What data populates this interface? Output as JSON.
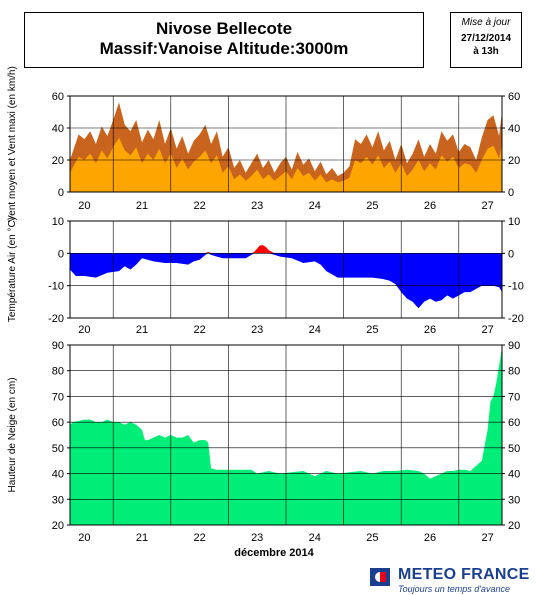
{
  "header": {
    "title_line1": "Nivose Bellecote",
    "title_line2": "Massif:Vanoise Altitude:3000m",
    "update_label": "Mise à jour",
    "update_date": "27/12/2014",
    "update_time": "à 13h"
  },
  "logo": {
    "name": "METEO FRANCE",
    "tagline": "Toujours un temps d'avance"
  },
  "colors": {
    "wind_max": "#c8641e",
    "wind_mean": "#ffa500",
    "temp_positive": "#ff0000",
    "temp_negative": "#0000ff",
    "snow": "#00ee77"
  },
  "chart_data": [
    {
      "type": "area",
      "ylabel": "Vent moyen et Vent maxi (en km/h)",
      "ylim": [
        0,
        60
      ],
      "yticks": [
        0,
        20,
        40,
        60
      ],
      "xlim": [
        19.75,
        27.25
      ],
      "xticks": [
        "20",
        "21",
        "22",
        "23",
        "24",
        "25",
        "26",
        "27"
      ],
      "grid": true,
      "series": [
        {
          "x": [
            19.75,
            19.9,
            20.0,
            20.1,
            20.2,
            20.3,
            20.4,
            20.5,
            20.6,
            20.7,
            20.8,
            20.9,
            21.0,
            21.1,
            21.2,
            21.3,
            21.4,
            21.5,
            21.6,
            21.7,
            21.8,
            21.9,
            22.0,
            22.1,
            22.2,
            22.3,
            22.4,
            22.5,
            22.6,
            22.7,
            22.8,
            22.9,
            23.0,
            23.1,
            23.2,
            23.3,
            23.4,
            23.5,
            23.6,
            23.7,
            23.8,
            23.9,
            24.0,
            24.1,
            24.2,
            24.3,
            24.4,
            24.5,
            24.6,
            24.7,
            24.8,
            24.9,
            25.0,
            25.1,
            25.2,
            25.3,
            25.4,
            25.5,
            25.6,
            25.7,
            25.8,
            25.9,
            26.0,
            26.1,
            26.2,
            26.3,
            26.4,
            26.5,
            26.6,
            26.7,
            26.8,
            26.9,
            27.0,
            27.1,
            27.2,
            27.25
          ],
          "values": [
            20,
            36,
            33,
            38,
            30,
            41,
            35,
            45,
            56,
            42,
            38,
            45,
            31,
            39,
            33,
            45,
            30,
            40,
            27,
            35,
            24,
            32,
            36,
            42,
            30,
            38,
            22,
            28,
            15,
            20,
            12,
            18,
            24,
            15,
            20,
            12,
            18,
            22,
            14,
            25,
            17,
            21,
            13,
            19,
            11,
            15,
            10,
            12,
            16,
            33,
            30,
            36,
            28,
            38,
            26,
            32,
            20,
            30,
            18,
            24,
            33,
            22,
            30,
            24,
            38,
            32,
            36,
            25,
            30,
            28,
            20,
            34,
            45,
            48,
            35,
            50
          ]
        },
        {
          "x": [
            19.75,
            19.9,
            20.0,
            20.1,
            20.2,
            20.3,
            20.4,
            20.5,
            20.6,
            20.7,
            20.8,
            20.9,
            21.0,
            21.1,
            21.2,
            21.3,
            21.4,
            21.5,
            21.6,
            21.7,
            21.8,
            21.9,
            22.0,
            22.1,
            22.2,
            22.3,
            22.4,
            22.5,
            22.6,
            22.7,
            22.8,
            22.9,
            23.0,
            23.1,
            23.2,
            23.3,
            23.4,
            23.5,
            23.6,
            23.7,
            23.8,
            23.9,
            24.0,
            24.1,
            24.2,
            24.3,
            24.4,
            24.5,
            24.6,
            24.7,
            24.8,
            24.9,
            25.0,
            25.1,
            25.2,
            25.3,
            25.4,
            25.5,
            25.6,
            25.7,
            25.8,
            25.9,
            26.0,
            26.1,
            26.2,
            26.3,
            26.4,
            26.5,
            26.6,
            26.7,
            26.8,
            26.9,
            27.0,
            27.1,
            27.2,
            27.25
          ],
          "values": [
            12,
            22,
            20,
            24,
            18,
            26,
            21,
            28,
            34,
            26,
            23,
            28,
            18,
            24,
            20,
            27,
            18,
            24,
            15,
            21,
            14,
            19,
            22,
            26,
            18,
            23,
            12,
            16,
            8,
            11,
            7,
            10,
            14,
            8,
            11,
            7,
            10,
            13,
            8,
            15,
            10,
            12,
            7,
            11,
            6,
            8,
            6,
            7,
            9,
            20,
            18,
            22,
            17,
            23,
            15,
            19,
            12,
            18,
            10,
            14,
            20,
            13,
            18,
            14,
            23,
            19,
            22,
            15,
            18,
            17,
            12,
            20,
            27,
            29,
            21,
            30
          ]
        }
      ]
    },
    {
      "type": "area",
      "ylabel": "Température Air (en °C)",
      "ylim": [
        -20,
        10
      ],
      "yticks": [
        -20,
        -10,
        0,
        10
      ],
      "xlim": [
        19.75,
        27.25
      ],
      "xticks": [
        "20",
        "21",
        "22",
        "23",
        "24",
        "25",
        "26",
        "27"
      ],
      "grid": true,
      "x": [
        19.75,
        19.85,
        20.0,
        20.2,
        20.4,
        20.6,
        20.7,
        20.8,
        20.9,
        21.0,
        21.2,
        21.4,
        21.6,
        21.8,
        21.9,
        22.0,
        22.1,
        22.15,
        22.2,
        22.3,
        22.4,
        22.6,
        22.75,
        22.8,
        22.9,
        22.95,
        23.0,
        23.05,
        23.1,
        23.15,
        23.2,
        23.3,
        23.4,
        23.6,
        23.8,
        24.0,
        24.1,
        24.2,
        24.4,
        24.6,
        24.8,
        25.0,
        25.2,
        25.3,
        25.4,
        25.5,
        25.6,
        25.7,
        25.75,
        25.8,
        25.9,
        26.0,
        26.1,
        26.2,
        26.3,
        26.4,
        26.5,
        26.6,
        26.7,
        26.8,
        26.9,
        27.0,
        27.1,
        27.2,
        27.25
      ],
      "values": [
        -5,
        -7,
        -7,
        -7.5,
        -6,
        -5.5,
        -4,
        -5,
        -3.5,
        -1.5,
        -2.5,
        -3,
        -3,
        -3.5,
        -2.5,
        -2,
        -0.5,
        0.5,
        -0.5,
        -1,
        -1.5,
        -1.5,
        -1.5,
        -1.5,
        -0.5,
        0.5,
        1.5,
        2.5,
        2.5,
        2,
        1,
        -0.5,
        -1,
        -1.5,
        -3,
        -2.5,
        -3.5,
        -5.5,
        -7.5,
        -7.5,
        -7.5,
        -7.5,
        -8,
        -8.5,
        -9.5,
        -12,
        -14,
        -15,
        -16,
        -17,
        -15,
        -14,
        -15,
        -14.5,
        -13,
        -14,
        -13,
        -12,
        -12,
        -11,
        -10,
        -10,
        -10,
        -10.5,
        -12
      ]
    },
    {
      "type": "area",
      "ylabel": "Hauteur de Neige (en cm)",
      "xlabel": "décembre 2014",
      "ylim": [
        20,
        90
      ],
      "yticks": [
        20,
        30,
        40,
        50,
        60,
        70,
        80,
        90
      ],
      "xlim": [
        19.75,
        27.25
      ],
      "xticks": [
        "20",
        "21",
        "22",
        "23",
        "24",
        "25",
        "26",
        "27"
      ],
      "grid": true,
      "x": [
        19.75,
        19.8,
        20.0,
        20.1,
        20.2,
        20.3,
        20.4,
        20.5,
        20.6,
        20.7,
        20.8,
        20.9,
        20.95,
        21.0,
        21.05,
        21.1,
        21.2,
        21.3,
        21.4,
        21.5,
        21.6,
        21.7,
        21.8,
        21.9,
        22.0,
        22.1,
        22.15,
        22.2,
        22.3,
        22.5,
        22.7,
        22.9,
        23.0,
        23.2,
        23.4,
        23.6,
        23.8,
        24.0,
        24.2,
        24.4,
        24.6,
        24.8,
        25.0,
        25.2,
        25.4,
        25.6,
        25.8,
        25.9,
        26.0,
        26.1,
        26.2,
        26.3,
        26.4,
        26.5,
        26.6,
        26.7,
        26.8,
        26.9,
        27.0,
        27.05,
        27.1,
        27.15,
        27.2,
        27.25
      ],
      "values": [
        59,
        60,
        61,
        61,
        60,
        60,
        61,
        60,
        60,
        59,
        60,
        59,
        58,
        57,
        53,
        53,
        54,
        55,
        54,
        55,
        54,
        54,
        55,
        52,
        53,
        53,
        52,
        42,
        41.5,
        41.5,
        41.5,
        41.5,
        40,
        41,
        40,
        40.5,
        41,
        39,
        41,
        40,
        40.5,
        41,
        40,
        41,
        41,
        41.5,
        41,
        40,
        38,
        39,
        40,
        41,
        41,
        41.5,
        41.5,
        41,
        43,
        45,
        57,
        68,
        70,
        75,
        82,
        89
      ]
    }
  ]
}
